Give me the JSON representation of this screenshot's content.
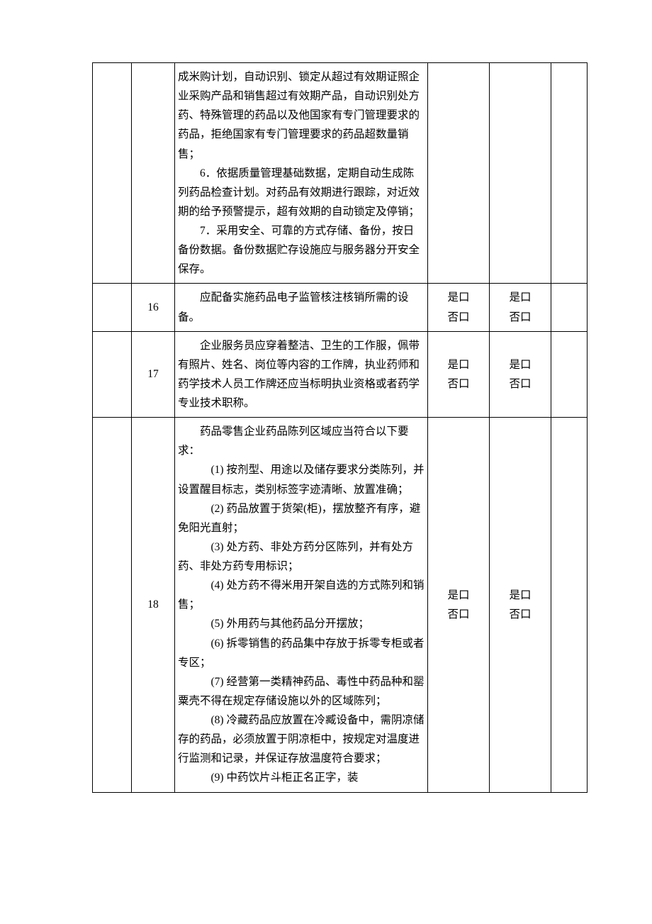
{
  "checkbox_yes": "是口",
  "checkbox_no": "否口",
  "rows": [
    {
      "num": "",
      "content_lines": [
        {
          "cls": "noindent",
          "text": "成米购计划，自动识别、锁定从超过有效期证照企业采购产品和销售超过有效期产品，自动识别处方药、特殊管理的药品以及他国家有专门管理要求的药品，拒绝国家有专门管理要求的药品超数量销售；"
        },
        {
          "cls": "indent",
          "text": "6．依据质量管理基础数据，定期自动生成陈列药品检查计划。对药品有效期进行跟踪，对近效期的给予预警提示，超有效期的自动锁定及停销；"
        },
        {
          "cls": "indent",
          "text": "7．采用安全、可靠的方式存储、备份，按日备份数据。备份数据贮存设施应与服务器分开安全保存。"
        }
      ],
      "chk": false
    },
    {
      "num": "16",
      "content_lines": [
        {
          "cls": "indent",
          "text": "应配备实施药品电子监管核注核销所需的设备。"
        }
      ],
      "chk": true
    },
    {
      "num": "17",
      "content_lines": [
        {
          "cls": "indent",
          "text": "企业服务员应穿着整洁、卫生的工作服，佩带有照片、姓名、岗位等内容的工作牌，执业药师和药学技术人员工作牌还应当标明执业资格或者药学专业技术职称。"
        }
      ],
      "chk": true
    },
    {
      "num": "18",
      "content_lines": [
        {
          "cls": "indent",
          "text": "药品零售企业药品陈列区域应当符合以下要求："
        },
        {
          "cls": "sub-indent",
          "text": "(1) 按剂型、用途以及储存要求分类陈列，并设置醒目标志，类别标签字迹清晰、放置准确；"
        },
        {
          "cls": "sub-indent",
          "text": "(2) 药品放置于货架(柜)，摆放整齐有序，避免阳光直射；"
        },
        {
          "cls": "sub-indent",
          "text": "(3) 处方药、非处方药分区陈列，并有处方药、非处方药专用标识；"
        },
        {
          "cls": "sub-indent",
          "text": "(4) 处方药不得米用开架自选的方式陈列和销售；"
        },
        {
          "cls": "sub-indent",
          "text": "(5) 外用药与其他药品分开摆放；"
        },
        {
          "cls": "sub-indent",
          "text": "(6) 拆零销售的药品集中存放于拆零专柜或者专区；"
        },
        {
          "cls": "sub-indent",
          "text": "(7) 经营第一类精神药品、毒性中药品种和罂粟壳不得在规定存储设施以外的区域陈列；"
        },
        {
          "cls": "sub-indent",
          "text": "(8) 冷藏药品应放置在冷臧设备中，需阴凉储存的药品，必须放置于阴凉柜中，按规定对温度进行监测和记录，并保证存放温度符合要求；"
        },
        {
          "cls": "sub-indent",
          "text": "(9) 中药饮片斗柜正名正字，装"
        }
      ],
      "chk": true
    }
  ]
}
